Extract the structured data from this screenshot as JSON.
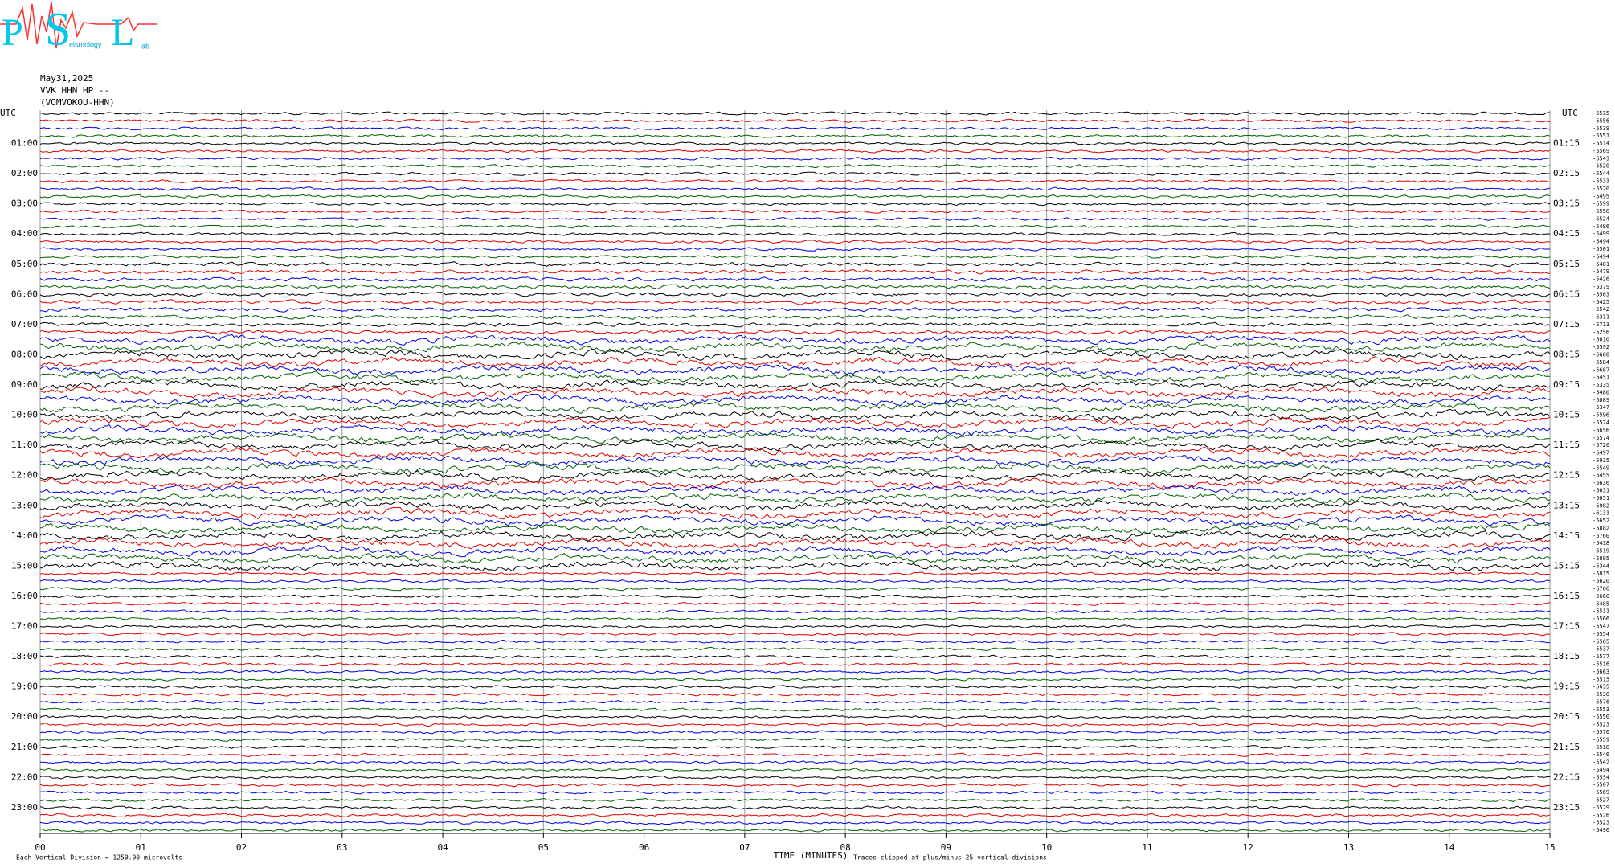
{
  "chart_data": {
    "type": "helicorder",
    "logo": {
      "letters": [
        "P",
        "S",
        "L"
      ],
      "sub": [
        "eismology",
        "ab"
      ]
    },
    "date": "May31,2025",
    "station": "VVK HHN HP --",
    "channel": "(VOMVOKOU-HHN)",
    "timezone_left": "UTC",
    "timezone_right": "UTC",
    "row_labels_left": [
      "01:00",
      "02:00",
      "03:00",
      "04:00",
      "05:00",
      "06:00",
      "07:00",
      "08:00",
      "09:00",
      "10:00",
      "11:00",
      "12:00",
      "13:00",
      "14:00",
      "15:00",
      "16:00",
      "17:00",
      "18:00",
      "19:00",
      "20:00",
      "21:00",
      "22:00",
      "23:00"
    ],
    "row_labels_right": [
      "01:15",
      "02:15",
      "03:15",
      "04:15",
      "05:15",
      "06:15",
      "07:15",
      "08:15",
      "09:15",
      "10:15",
      "11:15",
      "12:15",
      "13:15",
      "14:15",
      "15:15",
      "16:15",
      "17:15",
      "18:15",
      "19:15",
      "20:15",
      "21:15",
      "22:15",
      "23:15"
    ],
    "trace_means": [
      -5515,
      -5556,
      -5539,
      -5551,
      -5514,
      -5569,
      -5543,
      -5520,
      -5544,
      -5533,
      -5520,
      -5495,
      -5599,
      -5558,
      -5524,
      -5486,
      -5499,
      -5494,
      -5501,
      -5494,
      -5481,
      -5479,
      -5426,
      -5379,
      -5563,
      -5425,
      -5542,
      -5311,
      -5713,
      -5256,
      -5610,
      -5592,
      -5600,
      -5584,
      -5687,
      -5451,
      -5335,
      -5480,
      -5889,
      -5347,
      -5596,
      -5574,
      -5656,
      -5574,
      -5720,
      -5497,
      -5935,
      -5549,
      -5455,
      -5636,
      -5631,
      -5651,
      -5982,
      -6133,
      -5652,
      -5882,
      -5760,
      -5418,
      -5519,
      -5885,
      -5344,
      -5815,
      -5620,
      -5766,
      -5660,
      -5485,
      -5511,
      -5566,
      -5547,
      -5554,
      -5565,
      -5537,
      -5577,
      -5516,
      -5663,
      -5515,
      -5635,
      -5530,
      -5576,
      -5553,
      -5550,
      -5523,
      -5576,
      -5559,
      -5518,
      -5546,
      -5542,
      -5494,
      -5554,
      -5507,
      -5569,
      -5527,
      -5529,
      -5526,
      -5523,
      -5490
    ],
    "trace_colors": [
      "#000000",
      "#e00000",
      "#0000e0",
      "#006000"
    ],
    "xlim": [
      0,
      15
    ],
    "xticks": [
      {
        "value": 0,
        "label": "00"
      },
      {
        "value": 1,
        "label": "01"
      },
      {
        "value": 2,
        "label": "02"
      },
      {
        "value": 3,
        "label": "03"
      },
      {
        "value": 4,
        "label": "04"
      },
      {
        "value": 5,
        "label": "05"
      },
      {
        "value": 6,
        "label": "06"
      },
      {
        "value": 7,
        "label": "07"
      },
      {
        "value": 8,
        "label": "08"
      },
      {
        "value": 9,
        "label": "09"
      },
      10,
      11,
      12,
      13,
      14,
      15
    ],
    "xlabel": "TIME (MINUTES)",
    "grid": true,
    "footer_left": "Each Vertical Division = 1250.00 microvolts",
    "footer_right": "Traces clipped at plus/minus 25 vertical divisions"
  }
}
